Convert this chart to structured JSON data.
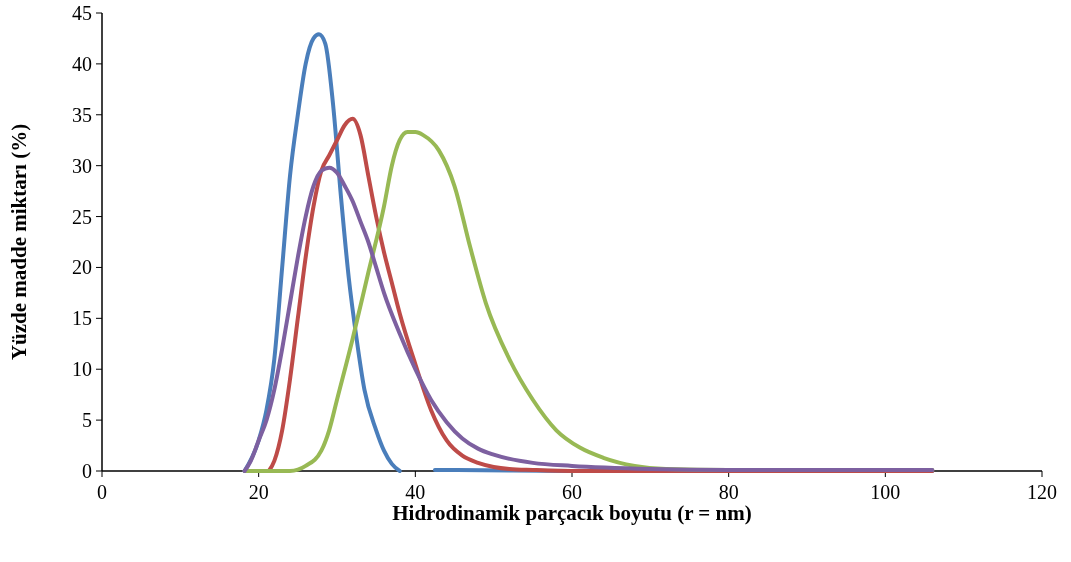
{
  "chart_data": {
    "type": "line",
    "xlabel": "Hidrodinamik parçacık boyutu (r = nm)",
    "ylabel": "Yüzde madde miktarı (%)",
    "xlim": [
      0,
      120
    ],
    "xticks": [
      0,
      20,
      40,
      60,
      80,
      100,
      120
    ],
    "ylim": [
      0,
      45
    ],
    "yticks": [
      0,
      5,
      10,
      15,
      20,
      25,
      30,
      35,
      40,
      45
    ],
    "grid": false,
    "marker": "none",
    "line_style": "solid",
    "series": [
      {
        "color": "#4a7ebb",
        "x": [
          18.2,
          20,
          21,
          22,
          23,
          24,
          25,
          26,
          27,
          27.7,
          28.5,
          29.5,
          30.5,
          31.5,
          32.5,
          33.5,
          35,
          36,
          37,
          38,
          40,
          42.5,
          45,
          60,
          106
        ],
        "values": [
          0,
          3,
          6,
          11,
          20,
          29,
          35,
          40,
          42.5,
          42.9,
          42,
          36,
          27,
          19,
          13,
          8,
          4,
          2,
          0.7,
          0,
          null,
          0.1,
          0.1,
          0,
          0
        ]
      },
      {
        "color": "#be4b48",
        "x": [
          21.3,
          22,
          23,
          24,
          25,
          26,
          27,
          28,
          29,
          30,
          31,
          32,
          33,
          34,
          35,
          36,
          37,
          38,
          40,
          42,
          44,
          46,
          48,
          50,
          52,
          55,
          60,
          106
        ],
        "values": [
          0,
          1,
          4,
          9,
          15,
          21,
          26,
          29.5,
          31,
          32.5,
          34,
          34.6,
          33,
          29,
          25,
          21.5,
          18.5,
          15.5,
          10.5,
          6,
          3,
          1.5,
          0.8,
          0.4,
          0.2,
          0.1,
          0,
          0
        ]
      },
      {
        "color": "#98b954",
        "x": [
          18.2,
          24,
          26,
          28,
          29,
          30,
          32,
          34,
          36,
          37,
          38,
          39,
          40,
          41,
          43,
          45,
          47,
          49,
          52,
          55,
          58,
          61,
          64,
          68,
          72,
          80,
          106
        ],
        "values": [
          0,
          0,
          0.5,
          2,
          4,
          7,
          13,
          19.5,
          26,
          30,
          32.5,
          33.3,
          33.3,
          33,
          31.5,
          28,
          22,
          16.5,
          11,
          7,
          4,
          2.3,
          1.3,
          0.5,
          0.2,
          0.1,
          0.1
        ]
      },
      {
        "color": "#7d60a0",
        "x": [
          18.2,
          19,
          20,
          21,
          22,
          23,
          24,
          25,
          26,
          27,
          28,
          29,
          30,
          31,
          32,
          33,
          34,
          35,
          36,
          38,
          40,
          42,
          44,
          46,
          48,
          50,
          55,
          60,
          70,
          80,
          106
        ],
        "values": [
          0,
          1,
          3,
          5,
          8,
          12,
          16.5,
          21,
          25,
          28,
          29.5,
          29.8,
          29.3,
          28,
          26.5,
          24.5,
          22.5,
          20,
          17.5,
          13.5,
          10,
          7,
          4.8,
          3.2,
          2.2,
          1.6,
          0.8,
          0.5,
          0.2,
          0.1,
          0.1
        ]
      }
    ]
  }
}
